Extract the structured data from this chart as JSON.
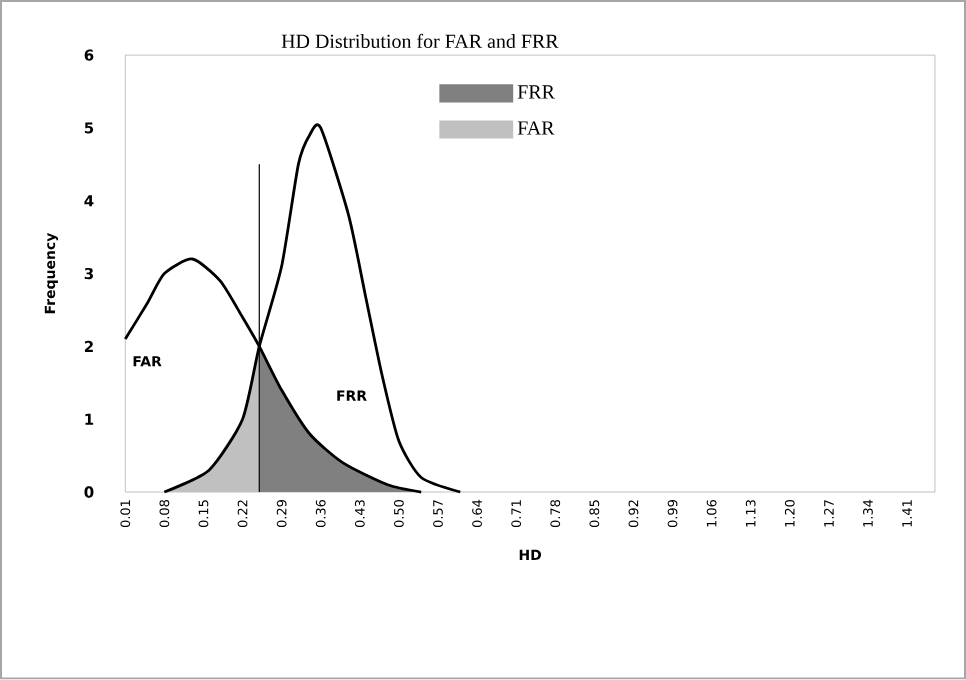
{
  "chart_data": {
    "type": "line",
    "title": "HD Distribution for FAR and FRR",
    "xlabel": "HD",
    "ylabel": "Frequency",
    "xlim": [
      0.01,
      1.46
    ],
    "ylim": [
      0,
      6
    ],
    "yticks": [
      0,
      1,
      2,
      3,
      4,
      5,
      6
    ],
    "xticks": [
      {
        "value": 0.01,
        "label": "0.01"
      },
      {
        "value": 0.08,
        "label": "0.08"
      },
      {
        "value": 0.15,
        "label": "0.15"
      },
      {
        "value": 0.22,
        "label": "0.22"
      },
      {
        "value": 0.29,
        "label": "0.29"
      },
      {
        "value": 0.36,
        "label": "0.36"
      },
      {
        "value": 0.43,
        "label": "0.43"
      },
      {
        "value": 0.5,
        "label": "0.50"
      },
      {
        "value": 0.57,
        "label": "0.57"
      },
      {
        "value": 0.64,
        "label": "0.64"
      },
      {
        "value": 0.71,
        "label": "0.71"
      },
      {
        "value": 0.78,
        "label": "0.78"
      },
      {
        "value": 0.85,
        "label": "0.85"
      },
      {
        "value": 0.92,
        "label": "0.92"
      },
      {
        "value": 0.99,
        "label": "0.99"
      },
      {
        "value": 1.06,
        "label": "1.06"
      },
      {
        "value": 1.13,
        "label": "1.13"
      },
      {
        "value": 1.2,
        "label": "1.20"
      },
      {
        "value": 1.27,
        "label": "1.27"
      },
      {
        "value": 1.34,
        "label": "1.34"
      },
      {
        "value": 1.41,
        "label": "1.41"
      }
    ],
    "series": [
      {
        "type": "area",
        "name": "FRR",
        "color": "#808080",
        "x": [
          0.25,
          0.29,
          0.34,
          0.4,
          0.48,
          0.54
        ],
        "values": [
          2.0,
          1.4,
          0.8,
          0.4,
          0.1,
          0
        ]
      },
      {
        "type": "area",
        "name": "FAR",
        "color": "#c0c0c0",
        "x": [
          0.08,
          0.16,
          0.22,
          0.25
        ],
        "values": [
          0,
          0.3,
          1.0,
          2.0
        ]
      },
      {
        "name": "FAR",
        "color": "#000000",
        "x": [
          0.01,
          0.05,
          0.08,
          0.13,
          0.18,
          0.22,
          0.25,
          0.29,
          0.34,
          0.4,
          0.48,
          0.54
        ],
        "values": [
          2.1,
          2.6,
          3.0,
          3.2,
          2.9,
          2.4,
          2.0,
          1.4,
          0.8,
          0.4,
          0.1,
          0
        ]
      },
      {
        "name": "FRR",
        "color": "#000000",
        "x": [
          0.08,
          0.16,
          0.22,
          0.25,
          0.29,
          0.32,
          0.34,
          0.36,
          0.41,
          0.44,
          0.47,
          0.5,
          0.54,
          0.61
        ],
        "values": [
          0,
          0.3,
          1.0,
          2.0,
          3.1,
          4.5,
          4.9,
          5.0,
          3.8,
          2.7,
          1.6,
          0.7,
          0.2,
          0
        ]
      },
      {
        "color": "#000000",
        "x": [
          0.25,
          0.25
        ],
        "values": [
          0,
          4.5
        ]
      }
    ],
    "legend": "top"
  }
}
